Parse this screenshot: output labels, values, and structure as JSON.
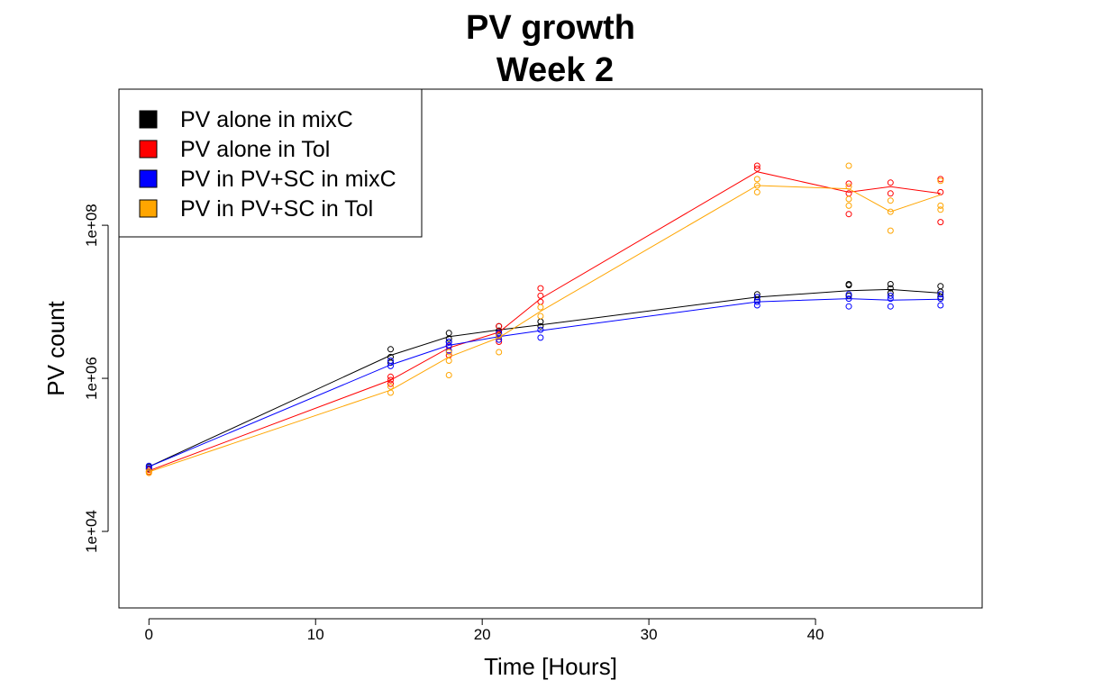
{
  "chart_data": {
    "type": "line",
    "title_lines": [
      "PV growth",
      "Week 2"
    ],
    "xlabel": "Time [Hours]",
    "ylabel": "PV count",
    "x_scale": "linear",
    "y_scale": "log10",
    "xlim": [
      -1.8,
      50.0
    ],
    "ylim": [
      1000,
      6000000000
    ],
    "x_ticks": [
      0,
      10,
      20,
      30,
      40
    ],
    "x_tick_labels": [
      "0",
      "10",
      "20",
      "30",
      "40"
    ],
    "y_ticks": [
      10000,
      1000000,
      100000000
    ],
    "y_tick_labels": [
      "1e+04",
      "1e+06",
      "1e+08"
    ],
    "grid": false,
    "legend_position": "top-left",
    "marker": "open-circle",
    "series": [
      {
        "name": "PV alone in mixC",
        "color": "#000000",
        "line": [
          [
            0,
            70000
          ],
          [
            14.5,
            2000000
          ],
          [
            18,
            3500000
          ],
          [
            21,
            4300000
          ],
          [
            23.5,
            5000000
          ],
          [
            36.5,
            11500000
          ],
          [
            42,
            14000000
          ],
          [
            44.5,
            14500000
          ],
          [
            47.5,
            13000000
          ]
        ],
        "points": [
          [
            0,
            70000
          ],
          [
            0,
            66000
          ],
          [
            14.5,
            2400000
          ],
          [
            14.5,
            1900000
          ],
          [
            14.5,
            1600000
          ],
          [
            18,
            3900000
          ],
          [
            18,
            3300000
          ],
          [
            18,
            3000000
          ],
          [
            21,
            4800000
          ],
          [
            21,
            4200000
          ],
          [
            21,
            3700000
          ],
          [
            23.5,
            5500000
          ],
          [
            23.5,
            4800000
          ],
          [
            36.5,
            12500000
          ],
          [
            36.5,
            11500000
          ],
          [
            36.5,
            10500000
          ],
          [
            42,
            17000000
          ],
          [
            42,
            16500000
          ],
          [
            42,
            12000000
          ],
          [
            44.5,
            17000000
          ],
          [
            44.5,
            15000000
          ],
          [
            44.5,
            13000000
          ],
          [
            47.5,
            16000000
          ],
          [
            47.5,
            13500000
          ],
          [
            47.5,
            11500000
          ]
        ]
      },
      {
        "name": "PV alone in Tol",
        "color": "#ff0000",
        "line": [
          [
            0,
            62000
          ],
          [
            14.5,
            950000
          ],
          [
            18,
            2500000
          ],
          [
            21,
            4000000
          ],
          [
            23.5,
            11000000
          ],
          [
            36.5,
            500000000
          ],
          [
            42,
            270000000
          ],
          [
            44.5,
            320000000
          ],
          [
            47.5,
            260000000
          ]
        ],
        "points": [
          [
            0,
            64000
          ],
          [
            0,
            60000
          ],
          [
            14.5,
            1050000
          ],
          [
            14.5,
            950000
          ],
          [
            14.5,
            850000
          ],
          [
            18,
            2600000
          ],
          [
            18,
            2000000
          ],
          [
            21,
            4800000
          ],
          [
            21,
            3800000
          ],
          [
            21,
            3000000
          ],
          [
            23.5,
            15000000
          ],
          [
            23.5,
            12000000
          ],
          [
            23.5,
            10000000
          ],
          [
            36.5,
            600000000
          ],
          [
            36.5,
            550000000
          ],
          [
            42,
            350000000
          ],
          [
            42,
            260000000
          ],
          [
            42,
            140000000
          ],
          [
            44.5,
            360000000
          ],
          [
            44.5,
            260000000
          ],
          [
            47.5,
            400000000
          ],
          [
            47.5,
            270000000
          ],
          [
            47.5,
            110000000
          ]
        ]
      },
      {
        "name": "PV in PV+SC in mixC",
        "color": "#0000ff",
        "line": [
          [
            0,
            70000
          ],
          [
            14.5,
            1500000
          ],
          [
            18,
            2700000
          ],
          [
            21,
            3500000
          ],
          [
            23.5,
            4200000
          ],
          [
            36.5,
            10000000
          ],
          [
            42,
            11000000
          ],
          [
            44.5,
            10500000
          ],
          [
            47.5,
            10800000
          ]
        ],
        "points": [
          [
            0,
            72000
          ],
          [
            0,
            67000
          ],
          [
            14.5,
            1700000
          ],
          [
            14.5,
            1450000
          ],
          [
            18,
            3000000
          ],
          [
            18,
            2700000
          ],
          [
            18,
            2300000
          ],
          [
            21,
            3900000
          ],
          [
            21,
            3500000
          ],
          [
            21,
            3200000
          ],
          [
            23.5,
            4300000
          ],
          [
            23.5,
            3400000
          ],
          [
            36.5,
            11500000
          ],
          [
            36.5,
            10000000
          ],
          [
            36.5,
            9000000
          ],
          [
            42,
            12500000
          ],
          [
            42,
            11000000
          ],
          [
            42,
            8700000
          ],
          [
            44.5,
            12000000
          ],
          [
            44.5,
            11000000
          ],
          [
            44.5,
            8700000
          ],
          [
            47.5,
            12500000
          ],
          [
            47.5,
            11000000
          ],
          [
            47.5,
            9000000
          ]
        ]
      },
      {
        "name": "PV in PV+SC in Tol",
        "color": "#ffa500",
        "line": [
          [
            0,
            60000
          ],
          [
            14.5,
            700000
          ],
          [
            18,
            1900000
          ],
          [
            21,
            3400000
          ],
          [
            23.5,
            7500000
          ],
          [
            36.5,
            330000000
          ],
          [
            42,
            300000000
          ],
          [
            44.5,
            150000000
          ],
          [
            47.5,
            250000000
          ]
        ],
        "points": [
          [
            0,
            61000
          ],
          [
            0,
            58000
          ],
          [
            14.5,
            780000
          ],
          [
            14.5,
            650000
          ],
          [
            18,
            2200000
          ],
          [
            18,
            1700000
          ],
          [
            18,
            1100000
          ],
          [
            21,
            3600000
          ],
          [
            21,
            2200000
          ],
          [
            23.5,
            8500000
          ],
          [
            23.5,
            6500000
          ],
          [
            36.5,
            400000000
          ],
          [
            36.5,
            330000000
          ],
          [
            36.5,
            270000000
          ],
          [
            42,
            600000000
          ],
          [
            42,
            320000000
          ],
          [
            42,
            220000000
          ],
          [
            42,
            180000000
          ],
          [
            44.5,
            210000000
          ],
          [
            44.5,
            150000000
          ],
          [
            44.5,
            85000000
          ],
          [
            47.5,
            380000000
          ],
          [
            47.5,
            180000000
          ],
          [
            47.5,
            160000000
          ]
        ]
      }
    ]
  }
}
